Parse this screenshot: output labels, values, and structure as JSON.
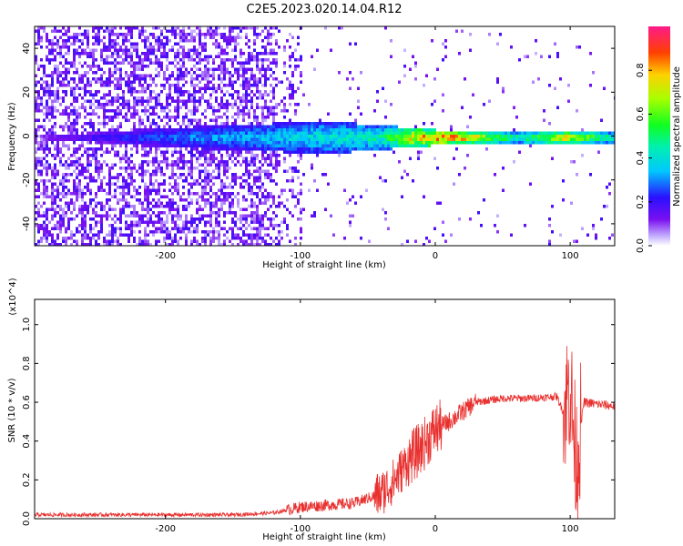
{
  "figure_title": "C2E5.2023.020.14.04.R12",
  "colors": {
    "snr_line": "#e8302e",
    "axis": "#000000",
    "background": "#ffffff"
  },
  "chart_data": [
    {
      "type": "heatmap",
      "xlabel": "Height of straight line (km)",
      "ylabel": "Frequency (Hz)",
      "xlim": [
        -297,
        133
      ],
      "ylim": [
        -50,
        50
      ],
      "xticks": [
        -200,
        -100,
        0,
        100
      ],
      "xtick_labels": [
        "-200",
        "-100",
        "0",
        "100"
      ],
      "yticks": [
        -40,
        -20,
        0,
        20,
        40
      ],
      "ytick_labels": [
        "-40",
        "-20",
        "0",
        "20",
        "40"
      ],
      "colorbar": {
        "label": "Normalized spectral amplitude",
        "range": [
          0,
          1
        ],
        "ticks": [
          0.0,
          0.2,
          0.4,
          0.6,
          0.8
        ],
        "tick_labels": [
          "0.0",
          "0.2",
          "0.4",
          "0.6",
          "0.8"
        ]
      },
      "ridge": [
        {
          "x": -297,
          "halfwidth_hz": 0,
          "amplitude": 0.15
        },
        {
          "x": -200,
          "halfwidth_hz": 4,
          "amplitude": 0.3
        },
        {
          "x": -120,
          "halfwidth_hz": 6,
          "amplitude": 0.4
        },
        {
          "x": -80,
          "halfwidth_hz": 7,
          "amplitude": 0.45
        },
        {
          "x": -40,
          "halfwidth_hz": 5,
          "amplitude": 0.5
        },
        {
          "x": -20,
          "halfwidth_hz": 4,
          "amplitude": 0.8
        },
        {
          "x": 0,
          "halfwidth_hz": 3,
          "amplitude": 0.95
        },
        {
          "x": 20,
          "halfwidth_hz": 2,
          "amplitude": 0.9
        },
        {
          "x": 60,
          "halfwidth_hz": 2,
          "amplitude": 0.5
        },
        {
          "x": 95,
          "halfwidth_hz": 2,
          "amplitude": 0.85
        },
        {
          "x": 133,
          "halfwidth_hz": 2,
          "amplitude": 0.45
        }
      ]
    },
    {
      "type": "line",
      "xlabel": "Height of straight line (km)",
      "ylabel": "SNR (10 * v/v)",
      "y_multiplier": "(x10^4)",
      "xlim": [
        -297,
        133
      ],
      "ylim": [
        0,
        1.13
      ],
      "xticks": [
        -200,
        -100,
        0,
        100
      ],
      "xtick_labels": [
        "-200",
        "-100",
        "0",
        "100"
      ],
      "yticks": [
        0.0,
        0.2,
        0.4,
        0.6,
        0.8,
        1.0
      ],
      "ytick_labels": [
        "0.0",
        "0.2",
        "0.4",
        "0.6",
        "0.8",
        "1.0"
      ],
      "series": [
        {
          "x": [
            -297,
            -250,
            -200,
            -150,
            -120,
            -100,
            -80,
            -60,
            -40,
            -30,
            -20,
            -10,
            0,
            10,
            20,
            30,
            50,
            70,
            90,
            95,
            100,
            103,
            105,
            110,
            120,
            133
          ],
          "y": [
            0.02,
            0.02,
            0.02,
            0.02,
            0.03,
            0.06,
            0.07,
            0.08,
            0.13,
            0.2,
            0.3,
            0.37,
            0.46,
            0.5,
            0.55,
            0.6,
            0.62,
            0.62,
            0.63,
            0.55,
            0.7,
            0.4,
            0.3,
            0.6,
            0.59,
            0.58
          ]
        }
      ]
    }
  ]
}
